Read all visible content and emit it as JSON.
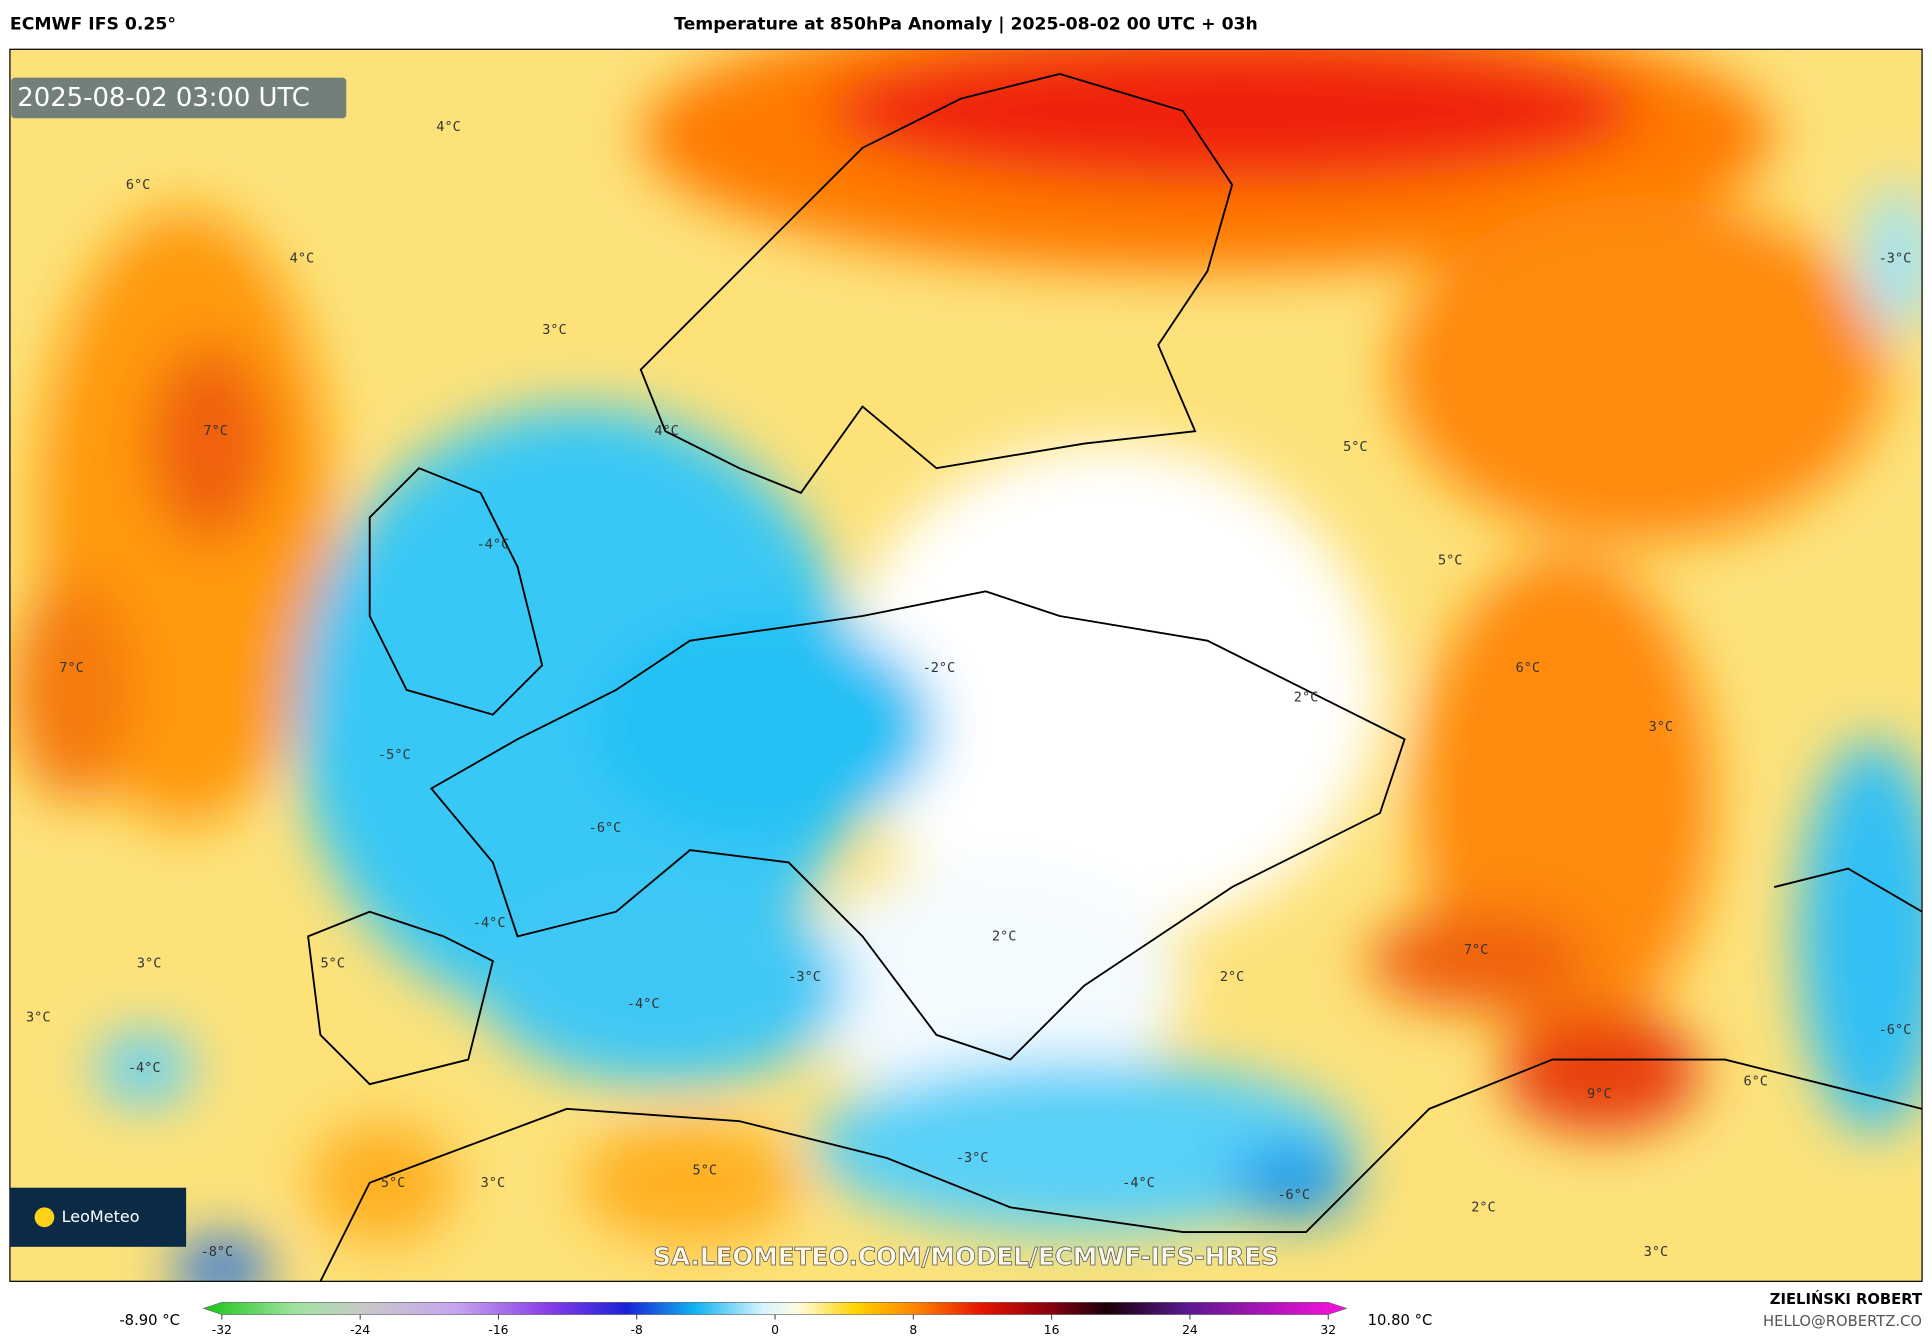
{
  "header": {
    "model": "ECMWF IFS 0.25°",
    "title": "Temperature at 850hPa Anomaly | 2025-08-02 00 UTC + 03h"
  },
  "map": {
    "timestamp": "2025-08-02 03:00 UTC",
    "logo": "LeoMeteo",
    "watermark": "SA.LEOMETEO.COM/MODEL/ECMWF-IFS-HRES",
    "contour_labels": [
      "4°C",
      "6°C",
      "4°C",
      "3°C",
      "7°C",
      "4°C",
      "-4°C",
      "5°C",
      "5°C",
      "-3°C",
      "7°C",
      "-2°C",
      "6°C",
      "2°C",
      "3°C",
      "-5°C",
      "-6°C",
      "-4°C",
      "2°C",
      "7°C",
      "3°C",
      "5°C",
      "-3°C",
      "2°C",
      "3°C",
      "-4°C",
      "-6°C",
      "-4°C",
      "6°C",
      "9°C",
      "-3°C",
      "5°C",
      "-4°C",
      "-6°C",
      "5°C",
      "3°C",
      "2°C",
      "3°C",
      "-8°C"
    ]
  },
  "colorbar": {
    "min_label": "-8.90 °C",
    "max_label": "10.80 °C",
    "ticks": [
      -32,
      -24,
      -16,
      -8,
      0,
      8,
      16,
      24,
      32
    ]
  },
  "footer": {
    "author": "ZIELIŃSKI ROBERT",
    "contact": "HELLO@ROBERTZ.CO"
  }
}
